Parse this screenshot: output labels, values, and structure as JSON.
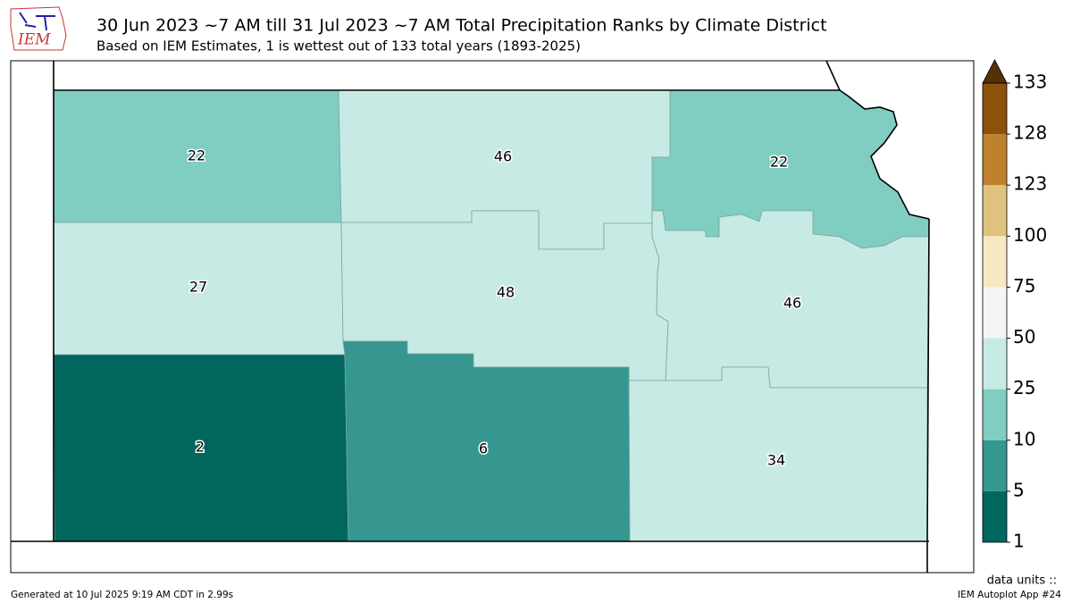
{
  "header": {
    "logo": "IEM",
    "title": "30 Jun 2023 ~7 AM till 31 Jul 2023 ~7 AM Total Precipitation Ranks by Climate District",
    "subtitle": "Based on IEM Estimates, 1 is wettest out of 133 total years (1893-2025)"
  },
  "districts": [
    {
      "value": 22
    },
    {
      "value": 46
    },
    {
      "value": 22
    },
    {
      "value": 27
    },
    {
      "value": 48
    },
    {
      "value": 46
    },
    {
      "value": 2
    },
    {
      "value": 6
    },
    {
      "value": 34
    }
  ],
  "colorbar": {
    "levels": [
      1,
      5,
      10,
      25,
      50,
      75,
      100,
      123,
      128,
      133
    ],
    "colors": [
      "#01665e",
      "#35978f",
      "#80cdc1",
      "#c7eae5",
      "#f5f5f5",
      "#f6e8c3",
      "#dfc27d",
      "#bf812d",
      "#8c510a"
    ],
    "extend_color": "#543005",
    "units_label": "data units ::"
  },
  "footer": {
    "generated": "Generated at 10 Jul 2025 9:19 AM CDT in 2.99s",
    "app": "IEM Autoplot App #24"
  }
}
